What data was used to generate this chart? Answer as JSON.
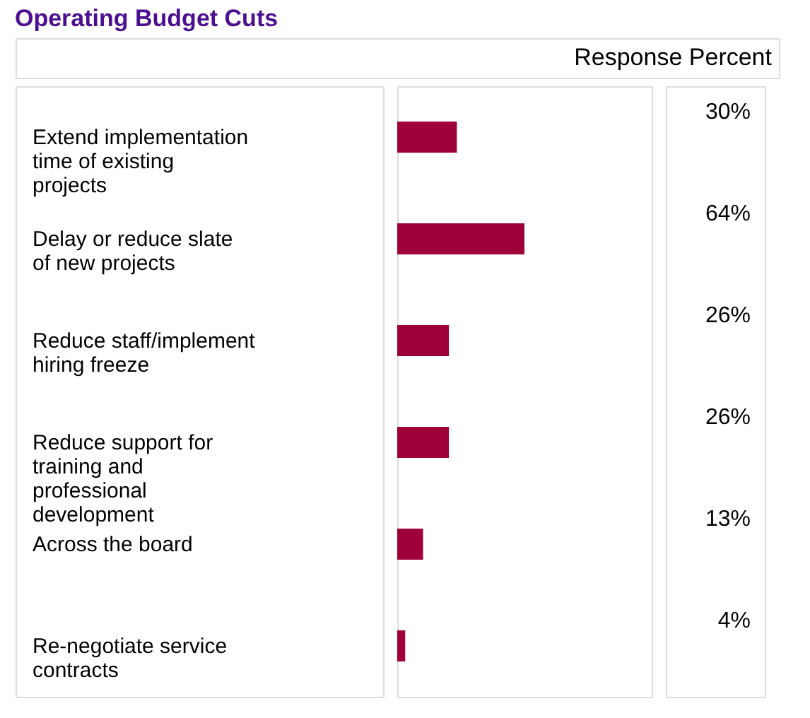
{
  "chart_data": {
    "type": "bar",
    "orientation": "horizontal",
    "title": "Operating Budget Cuts",
    "xlabel": "Response Percent",
    "categories": [
      "Extend implementation time of existing projects",
      "Delay or reduce slate of new projects",
      "Reduce staff/implement hiring freeze",
      "Reduce support for training and professional development",
      "Across the board",
      "Re-negotiate service contracts"
    ],
    "values": [
      30,
      64,
      26,
      26,
      13,
      4
    ],
    "value_labels": [
      "30%",
      "64%",
      "26%",
      "26%",
      "13%",
      "4%"
    ],
    "color": "#a0003a"
  }
}
